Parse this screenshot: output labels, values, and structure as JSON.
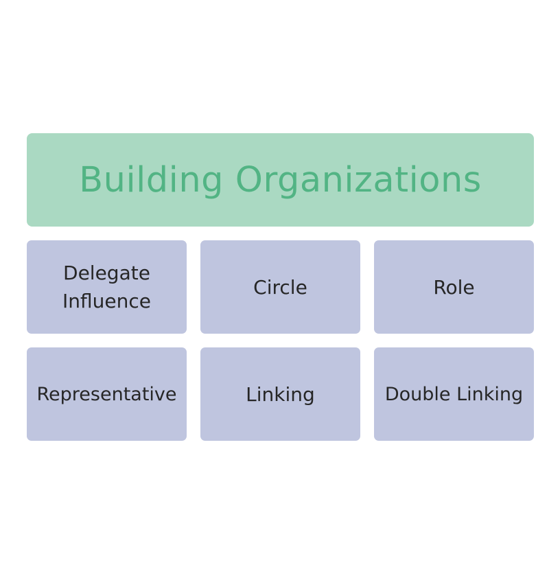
{
  "colors": {
    "background": "#ffffff",
    "header_fill": "#aad9c2",
    "header_text": "#52b484",
    "tile_fill": "#bfc5df",
    "tile_text": "#262626"
  },
  "header": {
    "title": "Building Organizations"
  },
  "tiles": [
    {
      "label": "Delegate\nInfluence"
    },
    {
      "label": "Circle"
    },
    {
      "label": "Role"
    },
    {
      "label": "Representative"
    },
    {
      "label": "Linking"
    },
    {
      "label": "Double Linking"
    }
  ]
}
